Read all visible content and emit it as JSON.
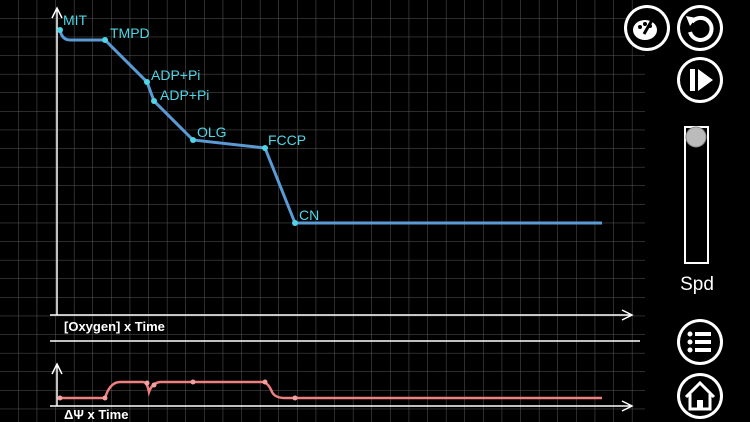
{
  "plot": {
    "markers": [
      "MIT",
      "TMPD",
      "ADP+Pi",
      "ADP+Pi",
      "OLG",
      "FCCP",
      "CN"
    ],
    "upper_label": "[Oxygen] x Time",
    "lower_label": "ΔΨ x Time"
  },
  "controls": {
    "speed_label": "Spd"
  }
}
